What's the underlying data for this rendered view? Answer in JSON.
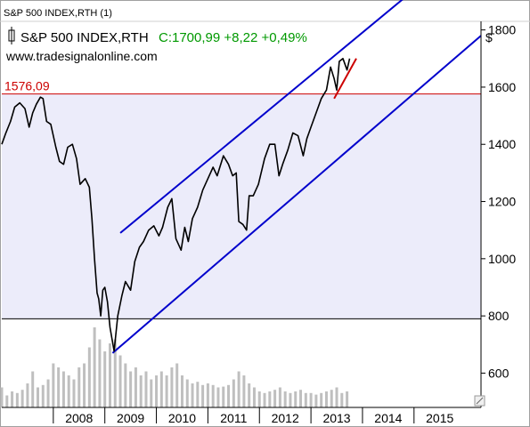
{
  "window_tab": "S&P 500 INDEX,RTH (1)",
  "header": {
    "instrument": "S&P 500 INDEX,RTH",
    "quote": "C:1700,99 +8,22 +0,49%",
    "website": "www.tradesignalonline.com",
    "currency_symbol": "$"
  },
  "colors": {
    "price": "#000000",
    "channel": "#0000cc",
    "resistance": "#cc0000",
    "support": "#000000",
    "quote": "#009900",
    "band_fill": "#ececfa",
    "volume": "#bfbfbf"
  },
  "chart_data": {
    "type": "line",
    "title": "S&P 500 INDEX,RTH",
    "xlabel": "",
    "ylabel": "$",
    "ylim": [
      480,
      1830
    ],
    "xlim": [
      2007.0,
      2016.3
    ],
    "y_ticks": [
      "600",
      "800",
      "1000",
      "1200",
      "1400",
      "1600",
      "1800"
    ],
    "x_ticks": [
      "2008",
      "2009",
      "2010",
      "2011",
      "2012",
      "2013",
      "2014",
      "2015"
    ],
    "grid": false,
    "series": [
      {
        "values": [
          [
            2007.0,
            1400
          ],
          [
            2007.08,
            1440
          ],
          [
            2007.17,
            1480
          ],
          [
            2007.25,
            1530
          ],
          [
            2007.35,
            1545
          ],
          [
            2007.45,
            1525
          ],
          [
            2007.53,
            1460
          ],
          [
            2007.6,
            1510
          ],
          [
            2007.67,
            1540
          ],
          [
            2007.75,
            1565
          ],
          [
            2007.8,
            1560
          ],
          [
            2007.87,
            1480
          ],
          [
            2007.95,
            1470
          ],
          [
            2008.05,
            1390
          ],
          [
            2008.12,
            1340
          ],
          [
            2008.2,
            1330
          ],
          [
            2008.28,
            1390
          ],
          [
            2008.37,
            1400
          ],
          [
            2008.45,
            1350
          ],
          [
            2008.52,
            1260
          ],
          [
            2008.62,
            1280
          ],
          [
            2008.7,
            1250
          ],
          [
            2008.75,
            1140
          ],
          [
            2008.8,
            1000
          ],
          [
            2008.85,
            880
          ],
          [
            2008.88,
            860
          ],
          [
            2008.92,
            800
          ],
          [
            2008.96,
            890
          ],
          [
            2009.0,
            900
          ],
          [
            2009.05,
            850
          ],
          [
            2009.1,
            760
          ],
          [
            2009.18,
            677
          ],
          [
            2009.25,
            800
          ],
          [
            2009.33,
            870
          ],
          [
            2009.4,
            920
          ],
          [
            2009.5,
            890
          ],
          [
            2009.58,
            990
          ],
          [
            2009.67,
            1040
          ],
          [
            2009.75,
            1060
          ],
          [
            2009.85,
            1100
          ],
          [
            2009.95,
            1115
          ],
          [
            2010.05,
            1080
          ],
          [
            2010.12,
            1110
          ],
          [
            2010.22,
            1180
          ],
          [
            2010.3,
            1210
          ],
          [
            2010.38,
            1070
          ],
          [
            2010.48,
            1030
          ],
          [
            2010.55,
            1110
          ],
          [
            2010.62,
            1060
          ],
          [
            2010.7,
            1140
          ],
          [
            2010.8,
            1180
          ],
          [
            2010.9,
            1240
          ],
          [
            2011.0,
            1280
          ],
          [
            2011.1,
            1320
          ],
          [
            2011.18,
            1290
          ],
          [
            2011.3,
            1360
          ],
          [
            2011.4,
            1330
          ],
          [
            2011.48,
            1290
          ],
          [
            2011.55,
            1300
          ],
          [
            2011.6,
            1130
          ],
          [
            2011.68,
            1120
          ],
          [
            2011.75,
            1100
          ],
          [
            2011.8,
            1220
          ],
          [
            2011.88,
            1220
          ],
          [
            2011.98,
            1260
          ],
          [
            2012.1,
            1350
          ],
          [
            2012.2,
            1400
          ],
          [
            2012.3,
            1400
          ],
          [
            2012.38,
            1290
          ],
          [
            2012.45,
            1330
          ],
          [
            2012.55,
            1380
          ],
          [
            2012.65,
            1440
          ],
          [
            2012.75,
            1430
          ],
          [
            2012.85,
            1360
          ],
          [
            2012.92,
            1420
          ],
          [
            2013.0,
            1460
          ],
          [
            2013.1,
            1510
          ],
          [
            2013.2,
            1560
          ],
          [
            2013.3,
            1590
          ],
          [
            2013.38,
            1670
          ],
          [
            2013.45,
            1630
          ],
          [
            2013.5,
            1590
          ],
          [
            2013.55,
            1690
          ],
          [
            2013.62,
            1700
          ],
          [
            2013.7,
            1660
          ],
          [
            2013.75,
            1700
          ]
        ]
      }
    ],
    "channel_lines": [
      {
        "name": "upper",
        "points": [
          [
            2009.3,
            1090
          ],
          [
            2015.0,
            1940
          ]
        ]
      },
      {
        "name": "lower",
        "points": [
          [
            2009.15,
            670
          ],
          [
            2016.3,
            1780
          ]
        ]
      }
    ],
    "trend_segment": {
      "points": [
        [
          2013.45,
          1560
        ],
        [
          2013.88,
          1700
        ]
      ]
    },
    "horizontal_levels": [
      {
        "label": "1576,09",
        "value": 1576.09,
        "role": "resistance"
      },
      {
        "label": "",
        "value": 790,
        "role": "support"
      }
    ],
    "volume_series": {
      "note_scale": "relative",
      "values": [
        [
          2007.0,
          0.25
        ],
        [
          2007.1,
          0.15
        ],
        [
          2007.2,
          0.2
        ],
        [
          2007.3,
          0.18
        ],
        [
          2007.4,
          0.22
        ],
        [
          2007.5,
          0.3
        ],
        [
          2007.6,
          0.45
        ],
        [
          2007.7,
          0.25
        ],
        [
          2007.8,
          0.28
        ],
        [
          2007.9,
          0.35
        ],
        [
          2008.0,
          0.55
        ],
        [
          2008.1,
          0.5
        ],
        [
          2008.2,
          0.45
        ],
        [
          2008.3,
          0.4
        ],
        [
          2008.4,
          0.35
        ],
        [
          2008.5,
          0.5
        ],
        [
          2008.6,
          0.55
        ],
        [
          2008.7,
          0.75
        ],
        [
          2008.8,
          1.0
        ],
        [
          2008.9,
          0.85
        ],
        [
          2009.0,
          0.7
        ],
        [
          2009.1,
          0.8
        ],
        [
          2009.2,
          0.85
        ],
        [
          2009.3,
          0.65
        ],
        [
          2009.4,
          0.55
        ],
        [
          2009.5,
          0.45
        ],
        [
          2009.6,
          0.5
        ],
        [
          2009.7,
          0.4
        ],
        [
          2009.8,
          0.45
        ],
        [
          2009.9,
          0.35
        ],
        [
          2010.0,
          0.4
        ],
        [
          2010.1,
          0.45
        ],
        [
          2010.2,
          0.4
        ],
        [
          2010.3,
          0.5
        ],
        [
          2010.4,
          0.55
        ],
        [
          2010.5,
          0.4
        ],
        [
          2010.6,
          0.35
        ],
        [
          2010.7,
          0.3
        ],
        [
          2010.8,
          0.32
        ],
        [
          2010.9,
          0.28
        ],
        [
          2011.0,
          0.3
        ],
        [
          2011.1,
          0.28
        ],
        [
          2011.2,
          0.25
        ],
        [
          2011.3,
          0.26
        ],
        [
          2011.4,
          0.28
        ],
        [
          2011.5,
          0.35
        ],
        [
          2011.6,
          0.45
        ],
        [
          2011.7,
          0.4
        ],
        [
          2011.8,
          0.3
        ],
        [
          2011.9,
          0.25
        ],
        [
          2012.0,
          0.2
        ],
        [
          2012.1,
          0.18
        ],
        [
          2012.2,
          0.2
        ],
        [
          2012.3,
          0.22
        ],
        [
          2012.4,
          0.25
        ],
        [
          2012.5,
          0.2
        ],
        [
          2012.6,
          0.18
        ],
        [
          2012.7,
          0.2
        ],
        [
          2012.8,
          0.22
        ],
        [
          2012.9,
          0.18
        ],
        [
          2013.0,
          0.18
        ],
        [
          2013.1,
          0.16
        ],
        [
          2013.2,
          0.18
        ],
        [
          2013.3,
          0.2
        ],
        [
          2013.4,
          0.22
        ],
        [
          2013.5,
          0.25
        ],
        [
          2013.6,
          0.18
        ],
        [
          2013.7,
          0.2
        ]
      ]
    }
  }
}
